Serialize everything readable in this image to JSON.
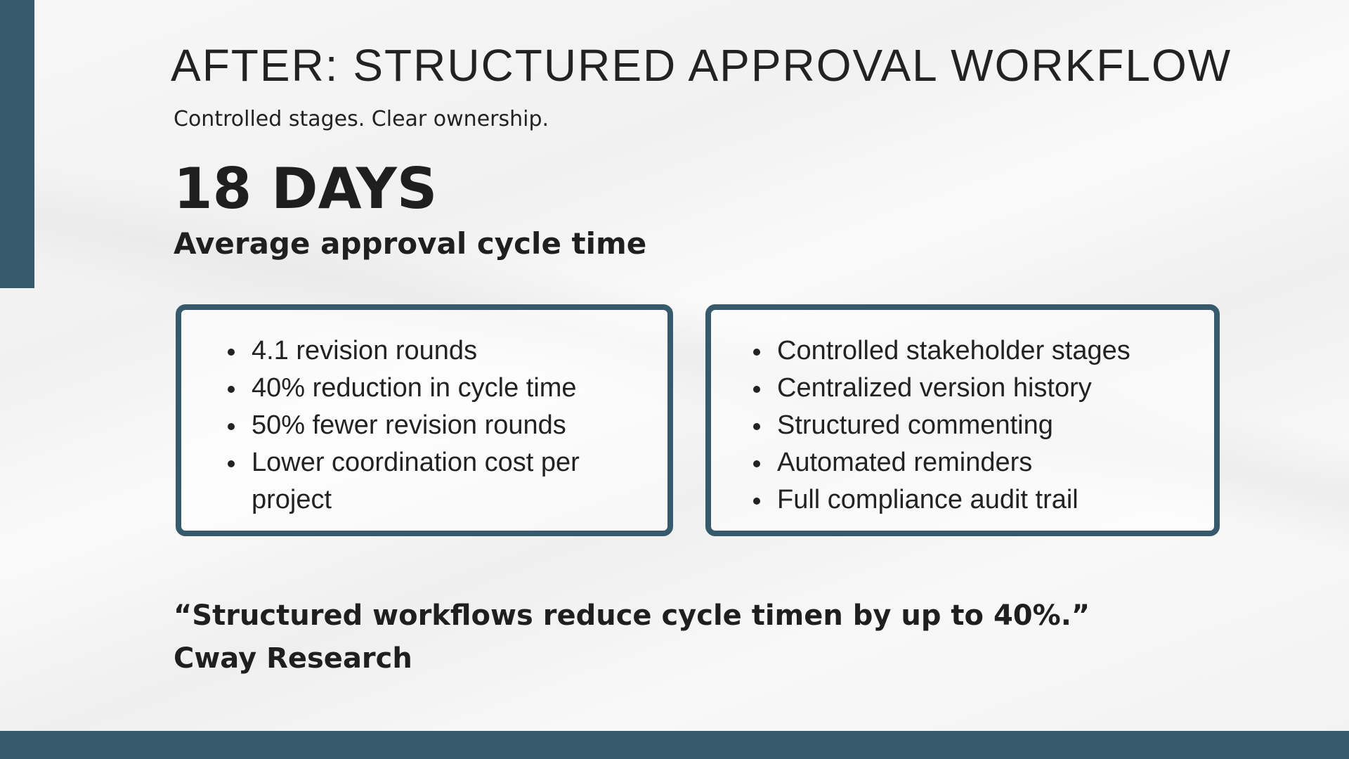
{
  "colors": {
    "accent": "#365a6b"
  },
  "title": "AFTER: STRUCTURED APPROVAL WORKFLOW",
  "subtitle": "Controlled stages. Clear ownership.",
  "metric": {
    "value": "18 DAYS",
    "label": "Average approval cycle time"
  },
  "left_box": {
    "items": [
      "4.1 revision rounds",
      "40% reduction in cycle time",
      "50% fewer revision rounds",
      "Lower coordination cost per project"
    ]
  },
  "right_box": {
    "items": [
      "Controlled stakeholder stages",
      "Centralized version history",
      "Structured commenting",
      "Automated reminders",
      "Full compliance audit trail"
    ]
  },
  "quote": {
    "text": "“Structured workflows reduce cycle timen by up to 40%.”",
    "source": "Cway Research"
  }
}
